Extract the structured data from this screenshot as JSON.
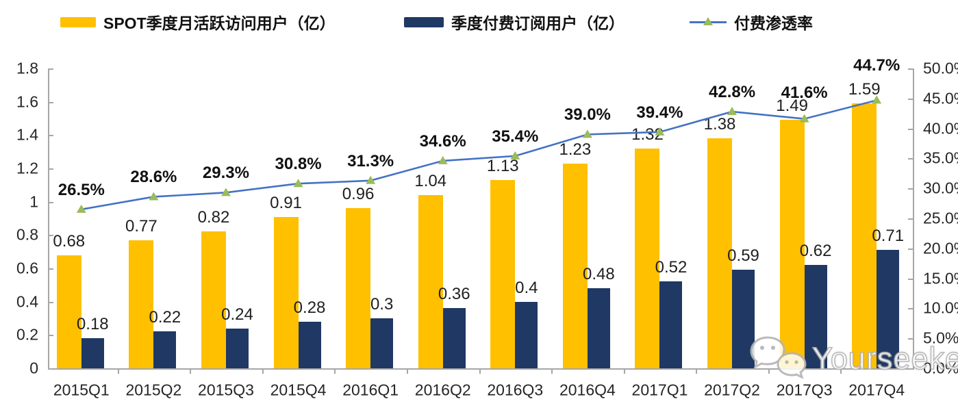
{
  "legend": {
    "items": [
      {
        "label": "SPOT季度月活跃访问用户（亿）",
        "swatch": "bar",
        "color": "#FFC000"
      },
      {
        "label": "季度付费订阅用户（亿）",
        "swatch": "bar",
        "color": "#1F3864"
      },
      {
        "label": "付费渗透率",
        "swatch": "line-triangle-marker",
        "line_color": "#4472C4",
        "marker_color": "#9BBB59"
      }
    ]
  },
  "chart_data": {
    "type": "bar",
    "title": "",
    "xlabel": "",
    "ylabel": "",
    "grid": false,
    "legend_position": "top",
    "categories": [
      "2015Q1",
      "2015Q2",
      "2015Q3",
      "2015Q4",
      "2016Q1",
      "2016Q2",
      "2016Q3",
      "2016Q4",
      "2017Q1",
      "2017Q2",
      "2017Q3",
      "2017Q4"
    ],
    "series": [
      {
        "name": "SPOT季度月活跃访问用户（亿）",
        "type": "bar",
        "axis": "left",
        "color": "#FFC000",
        "values": [
          0.68,
          0.77,
          0.82,
          0.91,
          0.96,
          1.04,
          1.13,
          1.23,
          1.32,
          1.38,
          1.49,
          1.59
        ],
        "labels": [
          "0.68",
          "0.77",
          "0.82",
          "0.91",
          "0.96",
          "1.04",
          "1.13",
          "1.23",
          "1.32",
          "1.38",
          "1.49",
          "1.59"
        ]
      },
      {
        "name": "季度付费订阅用户（亿）",
        "type": "bar",
        "axis": "left",
        "color": "#1F3864",
        "values": [
          0.18,
          0.22,
          0.24,
          0.28,
          0.3,
          0.36,
          0.4,
          0.48,
          0.52,
          0.59,
          0.62,
          0.71
        ],
        "labels": [
          "0.18",
          "0.22",
          "0.24",
          "0.28",
          "0.3",
          "0.36",
          "0.4",
          "0.48",
          "0.52",
          "0.59",
          "0.62",
          "0.71"
        ]
      },
      {
        "name": "付费渗透率",
        "type": "line",
        "axis": "right",
        "line_color": "#4472C4",
        "marker": "triangle",
        "marker_color": "#9BBB59",
        "values": [
          26.5,
          28.6,
          29.3,
          30.8,
          31.3,
          34.6,
          35.4,
          39.0,
          39.4,
          42.8,
          41.6,
          44.7
        ],
        "labels": [
          "26.5%",
          "28.6%",
          "29.3%",
          "30.8%",
          "31.3%",
          "34.6%",
          "35.4%",
          "39.0%",
          "39.4%",
          "42.8%",
          "41.6%",
          "44.7%"
        ]
      }
    ],
    "left_axis": {
      "range": [
        0,
        1.8
      ],
      "tick_step": 0.2,
      "tick_labels": [
        "0",
        "0.2",
        "0.4",
        "0.6",
        "0.8",
        "1",
        "1.2",
        "1.4",
        "1.6",
        "1.8"
      ]
    },
    "right_axis": {
      "range": [
        0,
        50
      ],
      "tick_step": 5,
      "unit": "%",
      "tick_labels": [
        "0.0%",
        "5.0%",
        "10.0%",
        "15.0%",
        "20.0%",
        "25.0%",
        "30.0%",
        "35.0%",
        "40.0%",
        "45.0%",
        "50.0%"
      ]
    }
  },
  "watermark": {
    "text": "Yourseeker",
    "icon": "wechat-icon"
  },
  "colors": {
    "bar_primary": "#FFC000",
    "bar_secondary": "#1F3864",
    "line": "#4472C4",
    "marker": "#9BBB59",
    "axis": "#a6a6a6",
    "text": "#262626"
  }
}
